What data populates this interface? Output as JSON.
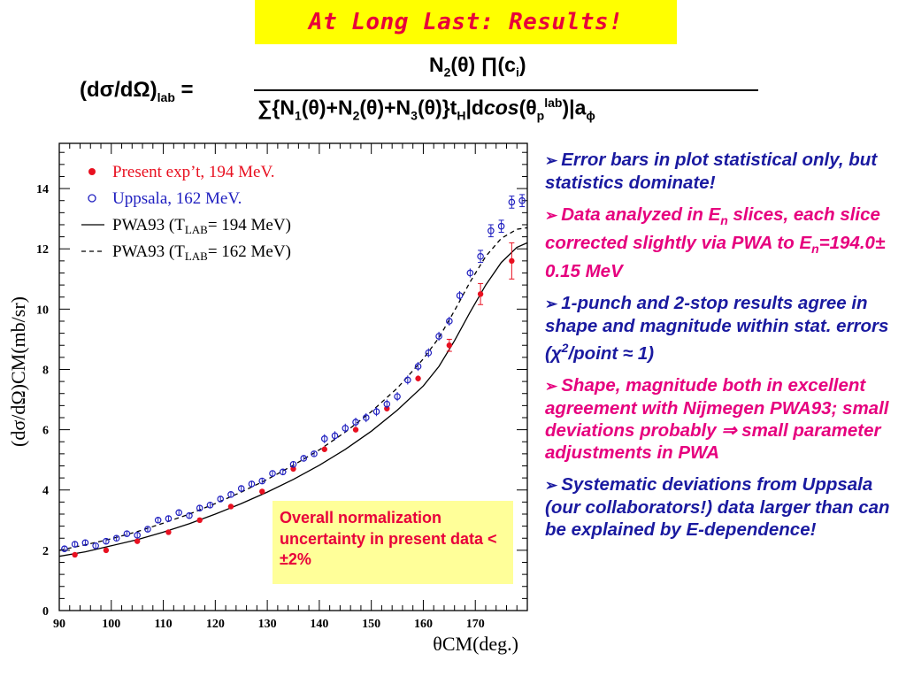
{
  "slide": {
    "title": "At Long Last:  Results!",
    "title_color": "#e8003a",
    "title_bg": "#ffff00",
    "formula": {
      "lhs": "(dσ/dΩ)",
      "lhs_sub": "lab",
      "equals": "=",
      "num_a": "N",
      "num_a_sub": "2",
      "num_b": "(θ) ∏(c",
      "num_b_sub": "i",
      "num_c": ")",
      "den_a": "∑{N",
      "den_a_sub": "1",
      "den_b": "(θ)+N",
      "den_b_sub": "2",
      "den_c": "(θ)+N",
      "den_c_sub": "3",
      "den_d": "(θ)}t",
      "den_d_sub": "H",
      "den_e": "|d",
      "den_e_italic": "cos",
      "den_f": "(θ",
      "den_f_sub": "p",
      "den_f_sup": "lab",
      "den_g": ")|a",
      "den_g_sub": "ϕ"
    },
    "bullets": [
      {
        "color": "#1a1aa0",
        "parts": [
          {
            "t": "Error bars in plot statistical only, but statistics dominate!"
          }
        ]
      },
      {
        "color": "#e6007e",
        "parts": [
          {
            "t": "Data analyzed in E"
          },
          {
            "t": "n",
            "sub": true
          },
          {
            "t": " slices, each slice corrected slightly via PWA to E"
          },
          {
            "t": "n",
            "sub": true
          },
          {
            "t": "=194.0± 0.15 MeV"
          }
        ]
      },
      {
        "color": "#1a1aa0",
        "parts": [
          {
            "t": "1-punch and 2-stop results agree in shape and magnitude within stat. errors (χ"
          },
          {
            "t": "2",
            "sup": true
          },
          {
            "t": "/point ≈ 1)"
          }
        ]
      },
      {
        "color": "#e6007e",
        "parts": [
          {
            "t": "Shape, magnitude both in excellent agreement with Nijmegen PWA93; small deviations probably ⇒ small parameter adjustments in PWA"
          }
        ]
      },
      {
        "color": "#1a1aa0",
        "parts": [
          {
            "t": "Systematic deviations from Uppsala (our collaborators!) data larger than can be explained by E-dependence!"
          }
        ]
      }
    ],
    "arrow_glyph": "➢",
    "note": "Overall normalization uncertainty in present data < ±2%",
    "note_color": "#e8003a",
    "note_bg": "#ffff99"
  },
  "chart_data": {
    "type": "scatter",
    "xlabel": "θCM(deg.)",
    "ylabel": "(dσ/dΩ)CM(mb/sr)",
    "xlim": [
      90,
      180
    ],
    "ylim": [
      0,
      15.5
    ],
    "xticks": [
      90,
      100,
      110,
      120,
      130,
      140,
      150,
      160,
      170
    ],
    "yticks": [
      0,
      2,
      4,
      6,
      8,
      10,
      12,
      14
    ],
    "legend": [
      {
        "marker": "filled-circle",
        "label": "Present exp’t, 194 MeV.",
        "color": "#e81020"
      },
      {
        "marker": "open-circle",
        "label": "Uppsala, 162 MeV.",
        "color": "#2020c0"
      },
      {
        "marker": "solid-line",
        "label": "PWA93 (T",
        "sub": "LAB",
        "label_end": "= 194 MeV)"
      },
      {
        "marker": "dashed-line",
        "label": "PWA93 (T",
        "sub": "LAB",
        "label_end": "= 162 MeV)"
      }
    ],
    "series": [
      {
        "name": "Present exp’t, 194 MeV.",
        "marker": "filled",
        "color": "#e81020",
        "points": [
          [
            93,
            1.85
          ],
          [
            99,
            2.0
          ],
          [
            105,
            2.3
          ],
          [
            111,
            2.6
          ],
          [
            117,
            3.0
          ],
          [
            123,
            3.45
          ],
          [
            129,
            3.95
          ],
          [
            135,
            4.7
          ],
          [
            141,
            5.35
          ],
          [
            147,
            6.0
          ],
          [
            153,
            6.7
          ],
          [
            159,
            7.7
          ],
          [
            165,
            8.8
          ],
          [
            171,
            10.5
          ],
          [
            177,
            11.6
          ]
        ],
        "errors": [
          0.05,
          0.05,
          0.05,
          0.05,
          0.05,
          0.05,
          0.05,
          0.06,
          0.06,
          0.07,
          0.08,
          0.1,
          0.2,
          0.35,
          0.6
        ]
      },
      {
        "name": "Uppsala, 162 MeV.",
        "marker": "open",
        "color": "#2020c0",
        "points": [
          [
            91,
            2.05
          ],
          [
            93,
            2.2
          ],
          [
            95,
            2.25
          ],
          [
            97,
            2.15
          ],
          [
            99,
            2.3
          ],
          [
            101,
            2.4
          ],
          [
            103,
            2.55
          ],
          [
            105,
            2.5
          ],
          [
            107,
            2.7
          ],
          [
            109,
            3.0
          ],
          [
            111,
            3.05
          ],
          [
            113,
            3.25
          ],
          [
            115,
            3.15
          ],
          [
            117,
            3.4
          ],
          [
            119,
            3.5
          ],
          [
            121,
            3.7
          ],
          [
            123,
            3.85
          ],
          [
            125,
            4.05
          ],
          [
            127,
            4.2
          ],
          [
            129,
            4.3
          ],
          [
            131,
            4.55
          ],
          [
            133,
            4.6
          ],
          [
            135,
            4.85
          ],
          [
            137,
            5.05
          ],
          [
            139,
            5.2
          ],
          [
            141,
            5.7
          ],
          [
            143,
            5.8
          ],
          [
            145,
            6.05
          ],
          [
            147,
            6.25
          ],
          [
            149,
            6.4
          ],
          [
            151,
            6.6
          ],
          [
            153,
            6.85
          ],
          [
            155,
            7.1
          ],
          [
            157,
            7.65
          ],
          [
            159,
            8.1
          ],
          [
            161,
            8.55
          ],
          [
            163,
            9.1
          ],
          [
            165,
            9.6
          ],
          [
            167,
            10.45
          ],
          [
            169,
            11.2
          ],
          [
            171,
            11.75
          ],
          [
            173,
            12.6
          ],
          [
            175,
            12.75
          ],
          [
            177,
            13.55
          ],
          [
            179,
            13.6
          ]
        ],
        "errors": [
          0.1,
          0.1,
          0.1,
          0.1,
          0.1,
          0.1,
          0.1,
          0.1,
          0.1,
          0.1,
          0.1,
          0.1,
          0.1,
          0.1,
          0.1,
          0.1,
          0.1,
          0.1,
          0.1,
          0.1,
          0.1,
          0.1,
          0.1,
          0.1,
          0.1,
          0.15,
          0.15,
          0.15,
          0.15,
          0.15,
          0.15,
          0.15,
          0.15,
          0.15,
          0.15,
          0.15,
          0.15,
          0.15,
          0.15,
          0.15,
          0.2,
          0.2,
          0.2,
          0.2,
          0.2
        ]
      },
      {
        "name": "PWA93 (TLAB= 194 MeV)",
        "style": "solid",
        "color": "#000000",
        "points": [
          [
            90,
            1.8
          ],
          [
            95,
            1.95
          ],
          [
            100,
            2.15
          ],
          [
            105,
            2.35
          ],
          [
            110,
            2.6
          ],
          [
            115,
            2.88
          ],
          [
            120,
            3.2
          ],
          [
            125,
            3.55
          ],
          [
            130,
            3.93
          ],
          [
            135,
            4.35
          ],
          [
            140,
            4.82
          ],
          [
            145,
            5.35
          ],
          [
            150,
            5.95
          ],
          [
            155,
            6.65
          ],
          [
            160,
            7.45
          ],
          [
            163,
            8.1
          ],
          [
            166,
            8.95
          ],
          [
            169,
            9.9
          ],
          [
            172,
            10.8
          ],
          [
            175,
            11.55
          ],
          [
            178,
            12.05
          ],
          [
            180,
            12.2
          ]
        ]
      },
      {
        "name": "PWA93 (TLAB= 162 MeV)",
        "style": "dashed",
        "color": "#000000",
        "points": [
          [
            90,
            2.0
          ],
          [
            95,
            2.18
          ],
          [
            100,
            2.38
          ],
          [
            105,
            2.62
          ],
          [
            110,
            2.9
          ],
          [
            115,
            3.2
          ],
          [
            120,
            3.55
          ],
          [
            125,
            3.93
          ],
          [
            130,
            4.35
          ],
          [
            135,
            4.82
          ],
          [
            140,
            5.33
          ],
          [
            145,
            5.92
          ],
          [
            150,
            6.6
          ],
          [
            155,
            7.38
          ],
          [
            160,
            8.35
          ],
          [
            163,
            9.05
          ],
          [
            166,
            9.95
          ],
          [
            169,
            10.9
          ],
          [
            172,
            11.75
          ],
          [
            175,
            12.35
          ],
          [
            178,
            12.65
          ],
          [
            180,
            12.7
          ]
        ]
      }
    ]
  }
}
